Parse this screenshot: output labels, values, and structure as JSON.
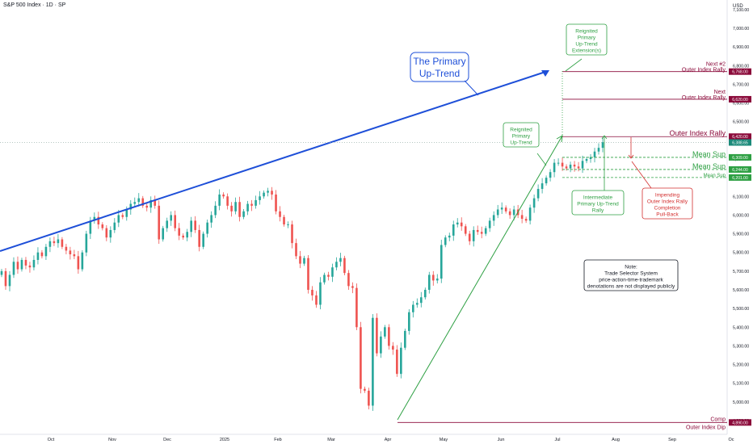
{
  "header": {
    "title": "S&P 500 Index · 1D · SP",
    "currency": "USD"
  },
  "colors": {
    "up": "#26a69a",
    "down": "#ef5350",
    "trend": "#1e4fd8",
    "green": "#2ea043",
    "maroon": "#8b0a3a"
  },
  "chart_data": {
    "type": "candlestick",
    "title": "S&P 500 Index · 1D · SP",
    "ylim": [
      4850,
      7200
    ],
    "y_ticks": [
      "4,900.00",
      "5,000.00",
      "5,100.00",
      "5,200.00",
      "5,300.00",
      "5,400.00",
      "5,500.00",
      "5,600.00",
      "5,700.00",
      "5,800.00",
      "5,900.00",
      "6,000.00",
      "6,100.00",
      "6,200.00",
      "6,300.00",
      "6,400.00",
      "6,500.00",
      "6,600.00",
      "6,700.00",
      "6,800.00",
      "6,900.00",
      "7,000.00",
      "7,100.00"
    ],
    "x_ticks": [
      "Oct",
      "Nov",
      "Dec",
      "2025",
      "Feb",
      "Mar",
      "Apr",
      "May",
      "Jun",
      "Jul",
      "Aug",
      "Sep",
      "Oc"
    ],
    "grid": false,
    "levels": [
      {
        "label": "Next #2",
        "label2": "Outer Index Rally",
        "badge": "6,768.00",
        "value": 6768,
        "style": "maroon"
      },
      {
        "label": "Next",
        "label2": "Outer Index Rally",
        "badge": "6,620.00",
        "value": 6620,
        "style": "maroon"
      },
      {
        "label": "Outer Index Rally",
        "label2": "",
        "badge": "6,420.00",
        "value": 6420,
        "style": "maroon"
      },
      {
        "label": "",
        "label2": "",
        "badge": "6,388.65",
        "value": 6388.65,
        "style": "green"
      },
      {
        "label": "Mean Sup",
        "label2": "",
        "badge": "6,309.00",
        "value": 6309,
        "style": "green"
      },
      {
        "label": "Mean Sup",
        "label2": "",
        "badge": "6,244.00",
        "value": 6244,
        "style": "green"
      },
      {
        "label": "Mean Sup",
        "label2": "",
        "badge": "6,201.00",
        "value": 6201,
        "style": "green"
      },
      {
        "label": "Comp",
        "label2": "Outer Index Dip",
        "badge": "4,890.00",
        "value": 4890,
        "style": "maroon"
      }
    ],
    "annotations": {
      "primary_uptrend": "The Primary Up-Trend",
      "reignited_extension": [
        "Reignited",
        "Primary",
        "Up-Trend",
        "Extension(s)"
      ],
      "reignited": [
        "Reignited",
        "Primary",
        "Up-Trend"
      ],
      "intermediate": [
        "Intermediate",
        "Primary Up-Trend",
        "Rally"
      ],
      "impending": [
        "Impending",
        "Outer Index Rally",
        "Completion",
        "Pull-Back"
      ],
      "note": [
        "Note:",
        "Trade Selector System",
        "price-action-time-trademark",
        "denotations are not displayed publicly"
      ]
    },
    "series": [
      {
        "name": "Sep",
        "points": [
          5700,
          5620,
          5680,
          5750,
          5710,
          5760,
          5730
        ]
      },
      {
        "name": "Oct",
        "points": [
          5720,
          5760,
          5800,
          5780,
          5830,
          5860,
          5850,
          5870,
          5830,
          5810,
          5790
        ]
      },
      {
        "name": "Nov",
        "points": [
          5780,
          5710,
          5800,
          5900,
          5970,
          5990,
          5950,
          5930,
          5880,
          5920,
          5960,
          6000,
          5990
        ]
      },
      {
        "name": "Dec",
        "points": [
          6030,
          6060,
          6070,
          6090,
          6050,
          6040,
          6080,
          6050,
          5870,
          5930,
          5970,
          6000,
          5930,
          5890
        ]
      },
      {
        "name": "Jan",
        "points": [
          5880,
          5910,
          5970,
          5920,
          5830,
          5900,
          5960,
          6000,
          6050,
          6110,
          6100,
          6050,
          6020,
          6070
        ]
      },
      {
        "name": "Feb",
        "points": [
          5990,
          6020,
          6060,
          6050,
          6080,
          6100,
          6120,
          6130,
          6110,
          6020,
          5990,
          5950,
          5950
        ]
      },
      {
        "name": "Mar",
        "points": [
          5850,
          5780,
          5740,
          5770,
          5600,
          5570,
          5520,
          5640,
          5680,
          5670,
          5720,
          5750,
          5770,
          5690,
          5620,
          5610
        ]
      },
      {
        "name": "Apr",
        "points": [
          5400,
          5070,
          5060,
          4980,
          5450,
          5260,
          5350,
          5400,
          5300,
          5280,
          5150,
          5290,
          5380,
          5480,
          5520,
          5530,
          5560
        ]
      },
      {
        "name": "May",
        "points": [
          5600,
          5680,
          5650,
          5660,
          5840,
          5880,
          5890,
          5950,
          5960,
          5940,
          5900,
          5860,
          5920,
          5910,
          5900
        ]
      },
      {
        "name": "Jun",
        "points": [
          5930,
          5970,
          6000,
          6030,
          6040,
          6020,
          6000,
          6030,
          6000,
          5980,
          5970,
          6040,
          6090,
          6140,
          6170,
          6200
        ]
      },
      {
        "name": "Jul",
        "points": [
          6230,
          6280,
          6280,
          6260,
          6250,
          6270,
          6260,
          6250,
          6290,
          6300,
          6310,
          6340,
          6360,
          6390
        ]
      }
    ]
  }
}
